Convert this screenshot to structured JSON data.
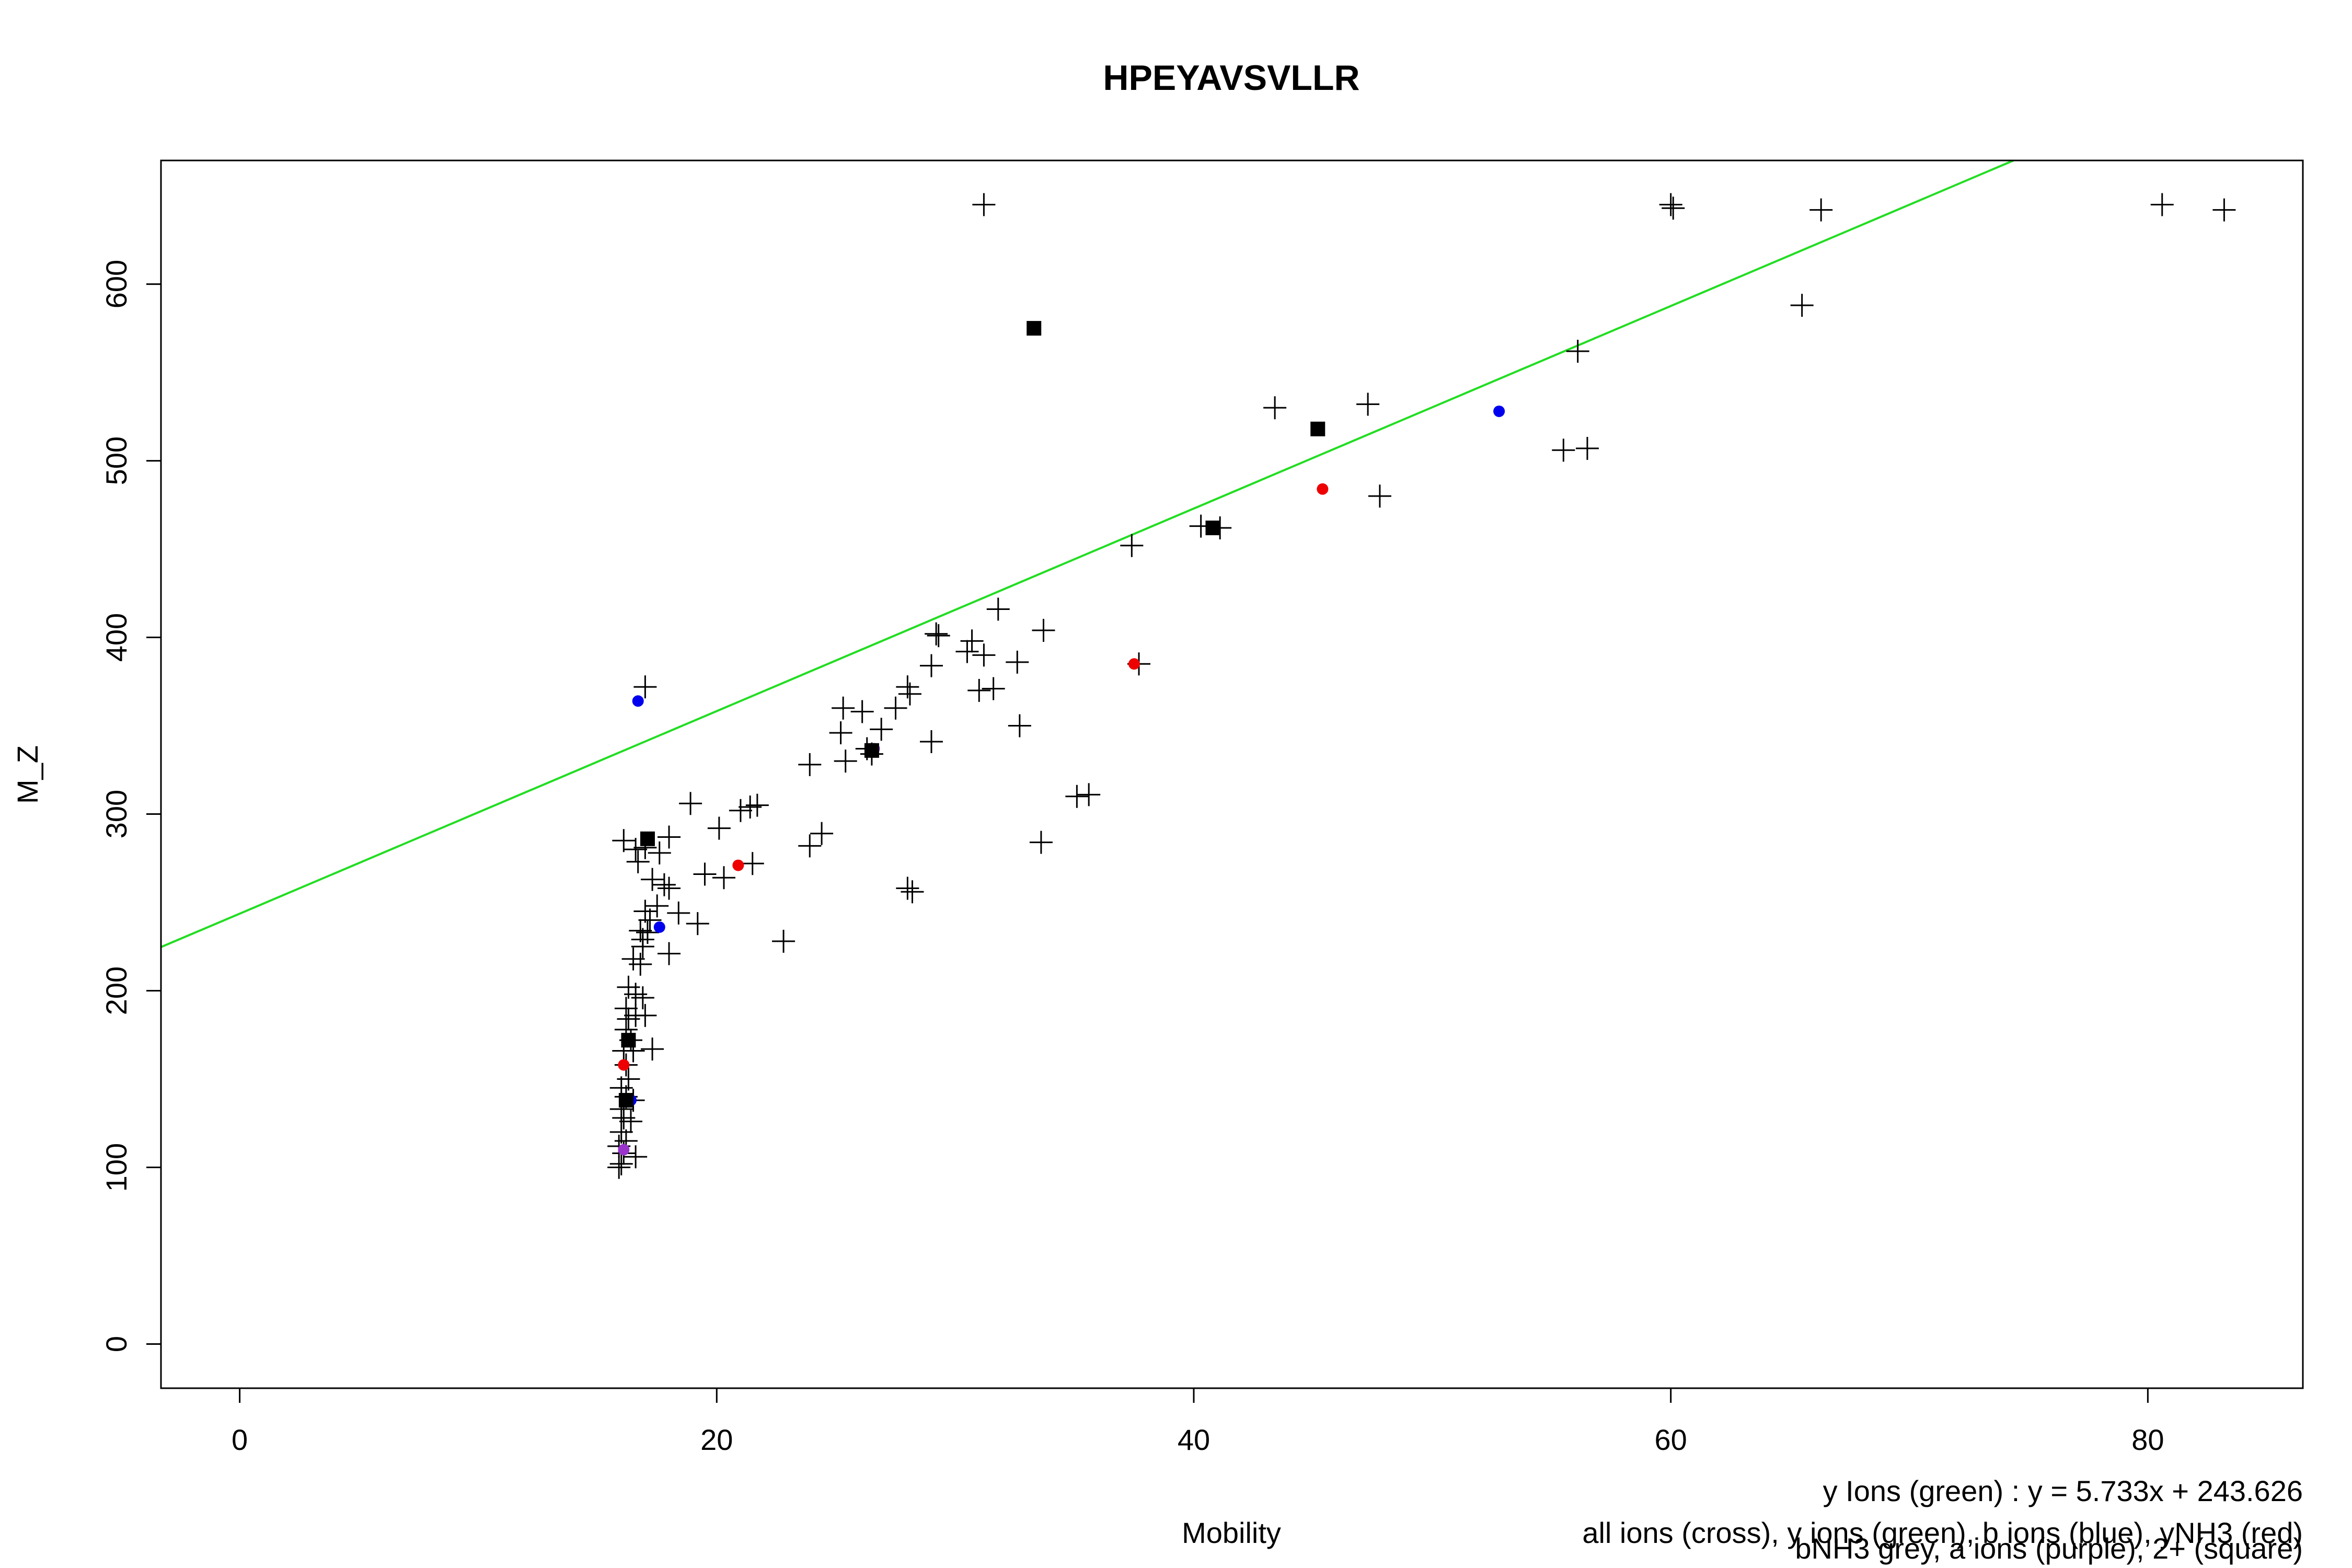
{
  "chart_data": {
    "type": "scatter",
    "title": "HPEYAVSVLLR",
    "xlabel": "Mobility",
    "ylabel": "M_Z",
    "xlim": [
      -3.3,
      86.5
    ],
    "ylim": [
      -25,
      670
    ],
    "x_ticks": [
      0,
      20,
      40,
      60,
      80
    ],
    "y_ticks": [
      0,
      100,
      200,
      300,
      400,
      500,
      600
    ],
    "grid": false,
    "legend": "bottom-right",
    "annotations": [
      "y Ions (green) : y = 5.733x + 243.626",
      "all ions (cross), y ions (green), b ions (blue), yNH3 (red)",
      "bNH3 grey, a ions (purple), 2+ (square)"
    ],
    "colors": {
      "all": "#000000",
      "y_fit": "#22dd22",
      "b": "#0000ee",
      "yNH3": "#ee0000",
      "a": "#9933cc",
      "double": "#000000"
    },
    "fit": {
      "series": "y Ions",
      "slope": 5.733,
      "intercept": 243.626
    },
    "series": [
      {
        "name": "all ions (cross)",
        "marker": "cross",
        "points": [
          [
            31.2,
            645
          ],
          [
            60,
            645
          ],
          [
            60.1,
            643
          ],
          [
            66.3,
            642
          ],
          [
            80.6,
            645
          ],
          [
            83.2,
            642
          ],
          [
            65.5,
            588
          ],
          [
            56.1,
            562
          ],
          [
            43.4,
            530
          ],
          [
            47.3,
            532
          ],
          [
            55.5,
            506
          ],
          [
            56.5,
            507
          ],
          [
            47.8,
            480
          ],
          [
            37.4,
            452
          ],
          [
            40.3,
            463
          ],
          [
            41.1,
            462
          ],
          [
            37.7,
            385
          ],
          [
            31.8,
            416
          ],
          [
            33.7,
            404
          ],
          [
            29.2,
            402
          ],
          [
            29.3,
            401
          ],
          [
            30.7,
            398
          ],
          [
            30.5,
            392
          ],
          [
            31.2,
            390
          ],
          [
            31,
            370
          ],
          [
            31.6,
            371
          ],
          [
            32.6,
            386
          ],
          [
            32.7,
            350
          ],
          [
            29,
            384
          ],
          [
            29,
            341
          ],
          [
            28,
            372
          ],
          [
            28.1,
            368
          ],
          [
            27.5,
            360
          ],
          [
            26.9,
            348
          ],
          [
            26.1,
            358
          ],
          [
            25.3,
            360
          ],
          [
            25.2,
            346
          ],
          [
            25.4,
            330
          ],
          [
            26.3,
            337
          ],
          [
            26.5,
            334
          ],
          [
            23.9,
            328
          ],
          [
            21,
            302
          ],
          [
            21.4,
            304
          ],
          [
            21.7,
            305
          ],
          [
            21.5,
            272
          ],
          [
            20.1,
            292
          ],
          [
            19.5,
            266
          ],
          [
            20.3,
            264
          ],
          [
            18.9,
            306
          ],
          [
            22.8,
            228
          ],
          [
            24.4,
            289
          ],
          [
            23.9,
            282
          ],
          [
            28,
            258
          ],
          [
            28.2,
            256
          ],
          [
            33.6,
            284
          ],
          [
            35.1,
            310
          ],
          [
            35.6,
            311
          ],
          [
            17,
            372
          ],
          [
            16.1,
            285
          ],
          [
            16.6,
            280
          ],
          [
            16.7,
            273
          ],
          [
            17,
            281
          ],
          [
            18,
            287
          ],
          [
            17.6,
            278
          ],
          [
            17.8,
            260
          ],
          [
            18,
            258
          ],
          [
            17.3,
            263
          ],
          [
            19.2,
            238
          ],
          [
            18.4,
            244
          ],
          [
            18,
            221
          ],
          [
            17.5,
            248
          ],
          [
            17,
            245
          ],
          [
            17.2,
            240
          ],
          [
            16.8,
            234
          ],
          [
            16.9,
            229
          ],
          [
            17.1,
            233
          ],
          [
            16.9,
            225
          ],
          [
            16.5,
            218
          ],
          [
            16.8,
            215
          ],
          [
            16.3,
            202
          ],
          [
            16.6,
            198
          ],
          [
            16.9,
            196
          ],
          [
            16.2,
            190
          ],
          [
            16.3,
            184
          ],
          [
            16.6,
            186
          ],
          [
            17,
            186
          ],
          [
            16.2,
            178
          ],
          [
            16.4,
            172
          ],
          [
            16.1,
            166
          ],
          [
            16.5,
            166
          ],
          [
            17.3,
            167
          ],
          [
            16.2,
            158
          ],
          [
            16.3,
            150
          ],
          [
            16,
            145
          ],
          [
            16.2,
            140
          ],
          [
            16.5,
            138
          ],
          [
            16,
            133
          ],
          [
            16.1,
            128
          ],
          [
            16.4,
            126
          ],
          [
            16,
            120
          ],
          [
            16.2,
            115
          ],
          [
            15.9,
            112
          ],
          [
            16.1,
            108
          ],
          [
            16.6,
            106
          ],
          [
            16,
            102
          ],
          [
            15.9,
            100
          ]
        ]
      },
      {
        "name": "y ions (green)",
        "marker": "line",
        "points": []
      },
      {
        "name": "b ions (blue)",
        "marker": "dot",
        "points": [
          [
            16.7,
            364
          ],
          [
            52.8,
            528
          ],
          [
            17.6,
            236
          ],
          [
            16.4,
            138
          ]
        ]
      },
      {
        "name": "yNH3 (red)",
        "marker": "dot",
        "points": [
          [
            45.4,
            484
          ],
          [
            37.5,
            385
          ],
          [
            20.9,
            271
          ],
          [
            16.1,
            158
          ]
        ]
      },
      {
        "name": "a ions (purple)",
        "marker": "dot",
        "points": [
          [
            26.6,
            337
          ],
          [
            16.1,
            110
          ]
        ]
      },
      {
        "name": "2+ (square)",
        "marker": "square",
        "points": [
          [
            33.3,
            575
          ],
          [
            45.2,
            518
          ],
          [
            40.8,
            462
          ],
          [
            26.5,
            336
          ],
          [
            17.1,
            286
          ],
          [
            16.3,
            172
          ],
          [
            16.2,
            138
          ]
        ]
      }
    ]
  }
}
